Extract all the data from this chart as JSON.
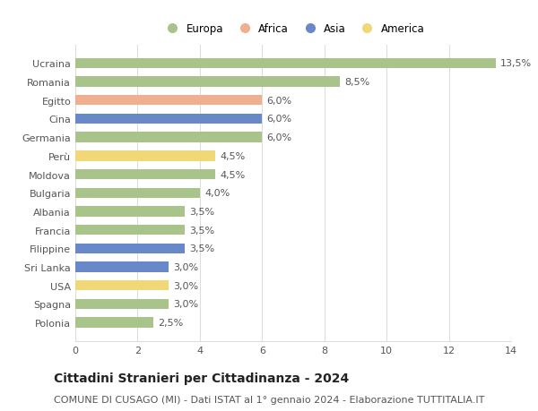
{
  "countries": [
    "Ucraina",
    "Romania",
    "Egitto",
    "Cina",
    "Germania",
    "Perù",
    "Moldova",
    "Bulgaria",
    "Albania",
    "Francia",
    "Filippine",
    "Sri Lanka",
    "USA",
    "Spagna",
    "Polonia"
  ],
  "values": [
    13.5,
    8.5,
    6.0,
    6.0,
    6.0,
    4.5,
    4.5,
    4.0,
    3.5,
    3.5,
    3.5,
    3.0,
    3.0,
    3.0,
    2.5
  ],
  "continents": [
    "Europa",
    "Europa",
    "Africa",
    "Asia",
    "Europa",
    "America",
    "Europa",
    "Europa",
    "Europa",
    "Europa",
    "Asia",
    "Asia",
    "America",
    "Europa",
    "Europa"
  ],
  "colors": {
    "Europa": "#a8c48a",
    "Africa": "#f0b090",
    "Asia": "#6888c8",
    "America": "#f0d878"
  },
  "title": "Cittadini Stranieri per Cittadinanza - 2024",
  "subtitle": "COMUNE DI CUSAGO (MI) - Dati ISTAT al 1° gennaio 2024 - Elaborazione TUTTITALIA.IT",
  "xlim": [
    0,
    14
  ],
  "xticks": [
    0,
    2,
    4,
    6,
    8,
    10,
    12,
    14
  ],
  "background_color": "#ffffff",
  "grid_color": "#dddddd",
  "bar_height": 0.55,
  "title_fontsize": 10,
  "subtitle_fontsize": 8,
  "label_fontsize": 8,
  "legend_fontsize": 8.5,
  "tick_fontsize": 8
}
